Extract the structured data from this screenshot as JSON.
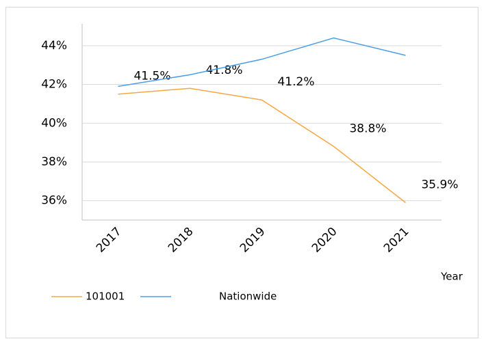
{
  "chart_data": {
    "type": "line",
    "categories": [
      "2017",
      "2018",
      "2019",
      "2020",
      "2021"
    ],
    "x_label": "Year",
    "series": [
      {
        "name": "101001",
        "color": "#f5a742",
        "values": [
          41.5,
          41.8,
          41.2,
          38.8,
          35.9
        ],
        "value_labels": [
          "41.5%",
          "41.8%",
          "41.2%",
          "38.8%",
          "35.9%"
        ]
      },
      {
        "name": "Nationwide",
        "color": "#4a9ee8",
        "values": [
          41.9,
          42.5,
          43.3,
          44.4,
          43.5
        ]
      }
    ],
    "ylim": [
      35,
      45
    ],
    "yticks": [
      {
        "value": 36,
        "label": "36%"
      },
      {
        "value": 38,
        "label": "38%"
      },
      {
        "value": 40,
        "label": "40%"
      },
      {
        "value": 42,
        "label": "42%"
      },
      {
        "value": 44,
        "label": "44%"
      }
    ],
    "grid": true,
    "legend": "bottom"
  }
}
